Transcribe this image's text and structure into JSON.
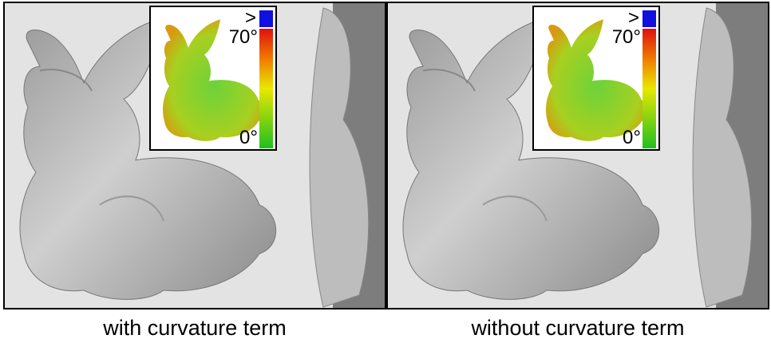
{
  "panels": [
    {
      "caption": "with curvature term",
      "inset": {
        "top_label": ">",
        "high_label": "70°",
        "low_label": "0°"
      }
    },
    {
      "caption": "without curvature term",
      "inset": {
        "top_label": ">",
        "high_label": "70°",
        "low_label": "0°"
      }
    }
  ]
}
